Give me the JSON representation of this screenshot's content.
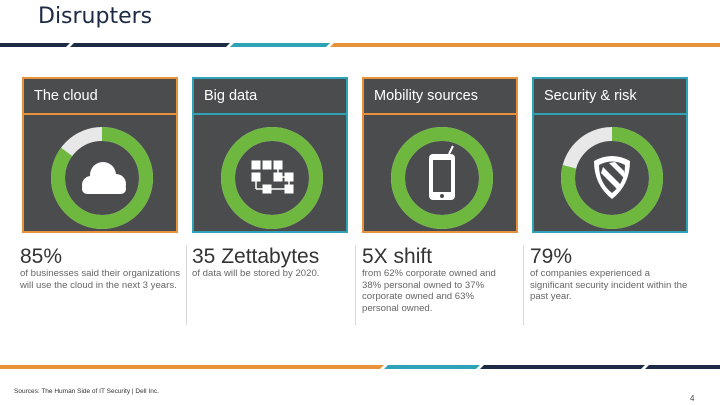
{
  "slide": {
    "title": "Disrupters",
    "source": "Sources: The Human Side of IT Security | Dell Inc.",
    "page_number": "4"
  },
  "colors": {
    "card_bg": "#4b4c4e",
    "ring_green": "#6fb83f",
    "ring_track": "#e8e8e8",
    "teal": "#2ea3b7",
    "orange": "#e8933a",
    "navy": "#1d2b45"
  },
  "cards": [
    {
      "title": "The cloud",
      "stat": "85%",
      "description": "of businesses said their organizations will use the cloud in the next 3 years.",
      "icon": "cloud-icon",
      "ring_fraction": 0.85,
      "border_color": "#e8933a"
    },
    {
      "title": "Big data",
      "stat": "35 Zettabytes",
      "description": "of data will be stored by 2020.",
      "icon": "data-flowchart-icon",
      "ring_fraction": 1.0,
      "border_color": "#2ea3b7"
    },
    {
      "title": "Mobility sources",
      "stat": "5X shift",
      "description": "from 62% corporate owned and 38% personal owned to 37% corporate owned and 63% personal owned.",
      "icon": "smartphone-icon",
      "ring_fraction": 1.0,
      "border_color": "#e8933a"
    },
    {
      "title": "Security & risk",
      "stat": "79%",
      "description": "of companies experienced a significant security incident within the past year.",
      "icon": "shield-icon",
      "ring_fraction": 0.79,
      "border_color": "#2ea3b7"
    }
  ]
}
